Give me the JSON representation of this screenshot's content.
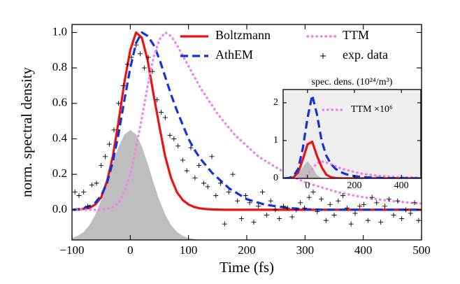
{
  "chart_data": [
    {
      "type": "line",
      "xlabel": "Time (fs)",
      "ylabel": "norm. spectral density",
      "xlim": [
        -100,
        500
      ],
      "ylim": [
        -0.17,
        1.045
      ],
      "xticks": [
        {
          "value": -100,
          "label": "−100"
        },
        0,
        100,
        200,
        300,
        400,
        500
      ],
      "yticks": [
        {
          "value": 0,
          "label": "0.0"
        },
        {
          "value": 0.2,
          "label": "0.2"
        },
        {
          "value": 0.4,
          "label": "0.4"
        },
        {
          "value": 0.6,
          "label": "0.6"
        },
        {
          "value": 0.8,
          "label": "0.8"
        },
        {
          "value": 1,
          "label": "1.0"
        }
      ],
      "background": "#ffffff",
      "legend": "upper center",
      "x": [
        -100,
        -90,
        -80,
        -70,
        -60,
        -50,
        -40,
        -30,
        -20,
        -10,
        0,
        10,
        20,
        30,
        40,
        50,
        60,
        70,
        80,
        90,
        100,
        110,
        120,
        130,
        140,
        150,
        160,
        170,
        180,
        190,
        200,
        210,
        220,
        230,
        240,
        250,
        260,
        270,
        280,
        290,
        300,
        310,
        320,
        330,
        340,
        350,
        360,
        370,
        380,
        390,
        400,
        410,
        420,
        430,
        440,
        450,
        460,
        470,
        480,
        490,
        500
      ],
      "shaded": {
        "color": "#bebebe",
        "values": [
          -0.159,
          -0.147,
          -0.125,
          -0.086,
          -0.027,
          0.053,
          0.152,
          0.26,
          0.356,
          0.425,
          0.45,
          0.425,
          0.356,
          0.26,
          0.152,
          0.053,
          -0.027,
          -0.086,
          -0.125,
          -0.147,
          -0.159,
          -0.165,
          -0.168,
          -0.17,
          -0.17,
          -0.17,
          -0.17,
          -0.17,
          -0.17,
          -0.17,
          -0.17,
          -0.17,
          -0.17,
          -0.17,
          -0.17,
          -0.17,
          -0.17,
          -0.17,
          -0.17,
          -0.17,
          -0.17,
          -0.17,
          -0.17,
          -0.17,
          -0.17,
          -0.17,
          -0.17,
          -0.17,
          -0.17,
          -0.17,
          -0.17,
          -0.17,
          -0.17,
          -0.17,
          -0.17,
          -0.17,
          -0.17,
          -0.17,
          -0.17,
          -0.17,
          -0.17
        ]
      },
      "series": [
        {
          "name": "Boltzmann",
          "color": "#ee1111",
          "style": "solid",
          "values": [
            0,
            0,
            0.005,
            0.01,
            0.03,
            0.07,
            0.16,
            0.3,
            0.5,
            0.72,
            0.9,
            1.0,
            0.97,
            0.84,
            0.65,
            0.47,
            0.3,
            0.18,
            0.1,
            0.055,
            0.03,
            0.015,
            0.008,
            0.004,
            0.002,
            0.001,
            0,
            0,
            0,
            0,
            0,
            0,
            0,
            0,
            0,
            0,
            0,
            0,
            0,
            0,
            0,
            0,
            0,
            0,
            0,
            0,
            0,
            0,
            0,
            0,
            0,
            0,
            0,
            0,
            0,
            0,
            0,
            0,
            0,
            0,
            0
          ]
        },
        {
          "name": "AthEM",
          "color": "#1133dd",
          "style": "dashed",
          "values": [
            0,
            0.003,
            0.01,
            0.02,
            0.04,
            0.08,
            0.15,
            0.27,
            0.43,
            0.62,
            0.8,
            0.94,
            1.0,
            0.98,
            0.93,
            0.85,
            0.75,
            0.65,
            0.56,
            0.48,
            0.4,
            0.34,
            0.29,
            0.25,
            0.21,
            0.18,
            0.15,
            0.12,
            0.1,
            0.08,
            0.06,
            0.05,
            0.04,
            0.03,
            0.025,
            0.02,
            0.015,
            0.01,
            0.008,
            0.005,
            0.003,
            0.002,
            0.001,
            0,
            0,
            0,
            0,
            0,
            0,
            0,
            0,
            0,
            0,
            0,
            0,
            0,
            0,
            0,
            0,
            0,
            0
          ]
        },
        {
          "name": "TTM",
          "color": "#ee82ee",
          "style": "dotted",
          "values": [
            0,
            0,
            0,
            0,
            0,
            0,
            0.005,
            0.015,
            0.04,
            0.1,
            0.2,
            0.35,
            0.52,
            0.7,
            0.86,
            0.96,
            1.0,
            0.98,
            0.93,
            0.87,
            0.81,
            0.75,
            0.69,
            0.64,
            0.59,
            0.54,
            0.5,
            0.46,
            0.42,
            0.39,
            0.36,
            0.33,
            0.3,
            0.28,
            0.26,
            0.24,
            0.22,
            0.2,
            0.185,
            0.17,
            0.155,
            0.145,
            0.135,
            0.125,
            0.115,
            0.105,
            0.097,
            0.09,
            0.083,
            0.077,
            0.071,
            0.066,
            0.061,
            0.057,
            0.053,
            0.049,
            0.046,
            0.043,
            0.04,
            0.037,
            0.035
          ]
        },
        {
          "name": "exp. data",
          "color": "#000000",
          "style": "marker",
          "x": [
            -95,
            -88,
            -80,
            -73,
            -66,
            -58,
            -50,
            -43,
            -36,
            -28,
            -20,
            -12,
            -5,
            2,
            10,
            17,
            24,
            31,
            38,
            46,
            53,
            60,
            68,
            75,
            82,
            90,
            97,
            104,
            111,
            118,
            126,
            133,
            140,
            147,
            155,
            162,
            169,
            176,
            184,
            191,
            198,
            205,
            212,
            220,
            227,
            234,
            241,
            249,
            256,
            263,
            270,
            278,
            285,
            292,
            299,
            307,
            314,
            321,
            328,
            336,
            343,
            350,
            357,
            365,
            372,
            379,
            386,
            394,
            401,
            408,
            415,
            423,
            430,
            437,
            444,
            452,
            459,
            466,
            473,
            481,
            488,
            495
          ],
          "values": [
            0.1,
            0.08,
            0.1,
            0.02,
            0.14,
            0.15,
            0.25,
            0.3,
            0.37,
            0.45,
            0.6,
            0.7,
            0.82,
            0.86,
            0.93,
            0.88,
            0.8,
            0.86,
            0.78,
            0.62,
            0.55,
            0.52,
            0.42,
            0.4,
            0.36,
            0.28,
            0.22,
            0.35,
            0.18,
            0.25,
            0.15,
            0.13,
            0.3,
            0.08,
            0.15,
            -0.08,
            0.1,
            0.2,
            0.05,
            -0.05,
            0.08,
            0.04,
            -0.07,
            0.02,
            0.1,
            -0.03,
            0.05,
            0,
            -0.05,
            0.02,
            0.01,
            -0.04,
            0,
            0.04,
            0.01,
            0.07,
            0.1,
            -0.01,
            0.06,
            -0.06,
            0.03,
            -0.03,
            0.05,
            0.08,
            0.01,
            -0.08,
            -0.02,
            0.02,
            0.03,
            -0.06,
            0.07,
            0.04,
            -0.07,
            0.02,
            0.06,
            -0.03,
            0.05,
            -0.05,
            0,
            -0.02,
            0.04,
            -0.06
          ]
        }
      ]
    },
    {
      "type": "line",
      "title": "spec. dens. (10²⁴/m³)",
      "xlim": [
        -104,
        483
      ],
      "ylim": [
        0,
        2.35
      ],
      "xticks": [
        0,
        200,
        400
      ],
      "yticks": [
        0,
        1,
        2
      ],
      "background": "#efefef",
      "legend": "upper right",
      "x": [
        -100,
        -80,
        -60,
        -40,
        -20,
        0,
        20,
        40,
        60,
        80,
        100,
        120,
        140,
        160,
        180,
        200,
        220,
        240,
        260,
        280,
        300,
        320,
        340,
        360,
        380,
        400,
        420,
        440,
        460,
        480
      ],
      "shaded": {
        "color": "#bebebe",
        "values": [
          0,
          0,
          0.01,
          0.09,
          0.3,
          0.45,
          0.3,
          0.09,
          0.01,
          0,
          0,
          0,
          0,
          0,
          0,
          0,
          0,
          0,
          0,
          0,
          0,
          0,
          0,
          0,
          0,
          0,
          0,
          0,
          0,
          0
        ]
      },
      "series": [
        {
          "name": "TTM ×10⁶",
          "color": "#ee82ee",
          "style": "dotted",
          "values": [
            0,
            0,
            0,
            0,
            0.01,
            0.08,
            0.25,
            0.4,
            0.45,
            0.42,
            0.37,
            0.32,
            0.27,
            0.23,
            0.2,
            0.17,
            0.14,
            0.12,
            0.1,
            0.085,
            0.07,
            0.06,
            0.05,
            0.045,
            0.04,
            0.035,
            0.03,
            0.026,
            0.023,
            0.02
          ]
        },
        {
          "color": "#ee1111",
          "style": "solid",
          "values": [
            0,
            0,
            0.03,
            0.15,
            0.5,
            0.9,
            0.97,
            0.6,
            0.3,
            0.1,
            0.03,
            0.008,
            0.002,
            0,
            0,
            0,
            0,
            0,
            0,
            0,
            0,
            0,
            0,
            0,
            0,
            0,
            0,
            0,
            0,
            0
          ]
        },
        {
          "color": "#1133dd",
          "style": "dashed",
          "values": [
            0,
            0.01,
            0.06,
            0.25,
            0.8,
            1.6,
            2.2,
            1.7,
            1.0,
            0.6,
            0.38,
            0.25,
            0.17,
            0.12,
            0.08,
            0.06,
            0.045,
            0.035,
            0.025,
            0.02,
            0.015,
            0.01,
            0.008,
            0.006,
            0.005,
            0.004,
            0.003,
            0.002,
            0.001,
            0.001
          ]
        }
      ]
    }
  ]
}
